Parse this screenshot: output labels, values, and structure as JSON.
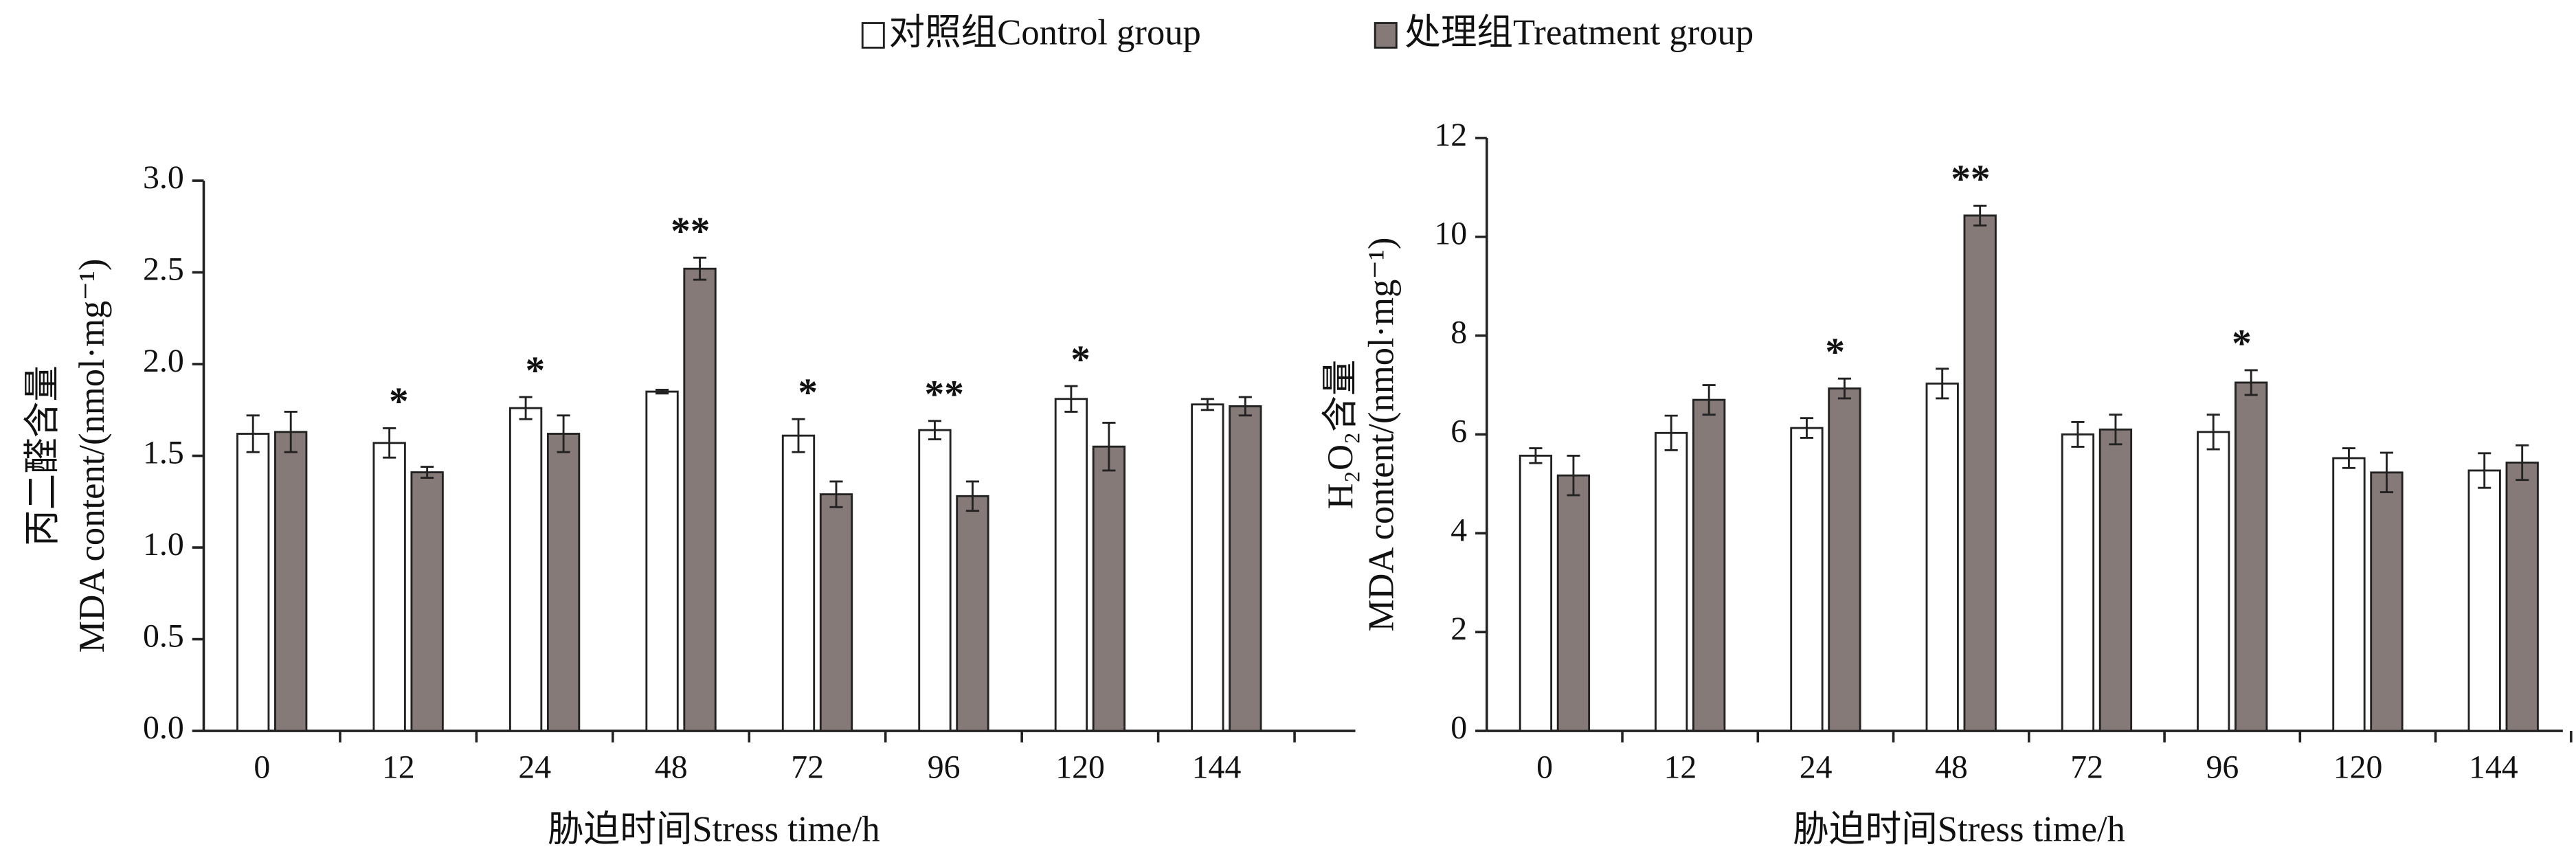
{
  "chart_data": [
    {
      "type": "bar",
      "ylabel": [
        "丙二醛含量",
        "MDA content/(nmol·mg⁻¹)"
      ],
      "xlabel": "胁迫时间Stress time/h",
      "categories": [
        "0",
        "12",
        "24",
        "48",
        "72",
        "96",
        "120",
        "144"
      ],
      "series": [
        {
          "name": "对照组Control group",
          "color": "#ffffff",
          "values": [
            1.62,
            1.57,
            1.76,
            1.85,
            1.61,
            1.64,
            1.81,
            1.78
          ],
          "errors": [
            0.1,
            0.08,
            0.06,
            0.01,
            0.09,
            0.05,
            0.07,
            0.03
          ]
        },
        {
          "name": "处理组Treatment group",
          "color": "#857a78",
          "values": [
            1.63,
            1.41,
            1.62,
            2.52,
            1.29,
            1.28,
            1.55,
            1.77
          ],
          "errors": [
            0.11,
            0.03,
            0.1,
            0.06,
            0.07,
            0.08,
            0.13,
            0.05
          ]
        }
      ],
      "annotations": [
        null,
        "*",
        "*",
        "**",
        "*",
        "**",
        "*",
        null
      ],
      "ylim": [
        0,
        3
      ],
      "yticks": [
        {
          "value": 0,
          "label": "0.0"
        },
        0.5,
        {
          "value": 1,
          "label": "1.0"
        },
        1.5,
        {
          "value": 2,
          "label": "2.0"
        },
        2.5,
        {
          "value": 3,
          "label": "3.0"
        }
      ]
    },
    {
      "type": "bar",
      "ylabel": [
        "H₂O₂含量",
        "MDA content/(nmol·mg⁻¹)"
      ],
      "xlabel": "胁迫时间Stress time/h",
      "categories": [
        "0",
        "12",
        "24",
        "48",
        "72",
        "96",
        "120",
        "144"
      ],
      "series": [
        {
          "color": "#ffffff",
          "values": [
            5.57,
            6.03,
            6.13,
            7.03,
            6.0,
            6.05,
            5.52,
            5.27
          ],
          "errors": [
            0.15,
            0.35,
            0.2,
            0.3,
            0.25,
            0.35,
            0.2,
            0.35
          ]
        },
        {
          "color": "#857a78",
          "values": [
            5.17,
            6.7,
            6.93,
            10.43,
            6.1,
            7.05,
            5.23,
            5.43
          ],
          "errors": [
            0.4,
            0.3,
            0.2,
            0.2,
            0.3,
            0.25,
            0.4,
            0.35
          ]
        }
      ],
      "annotations": [
        null,
        null,
        "*",
        "**",
        null,
        "*",
        null,
        null
      ],
      "ylim": [
        0,
        12
      ],
      "yticks": [
        0,
        2,
        4,
        6,
        8,
        10,
        12
      ]
    }
  ]
}
